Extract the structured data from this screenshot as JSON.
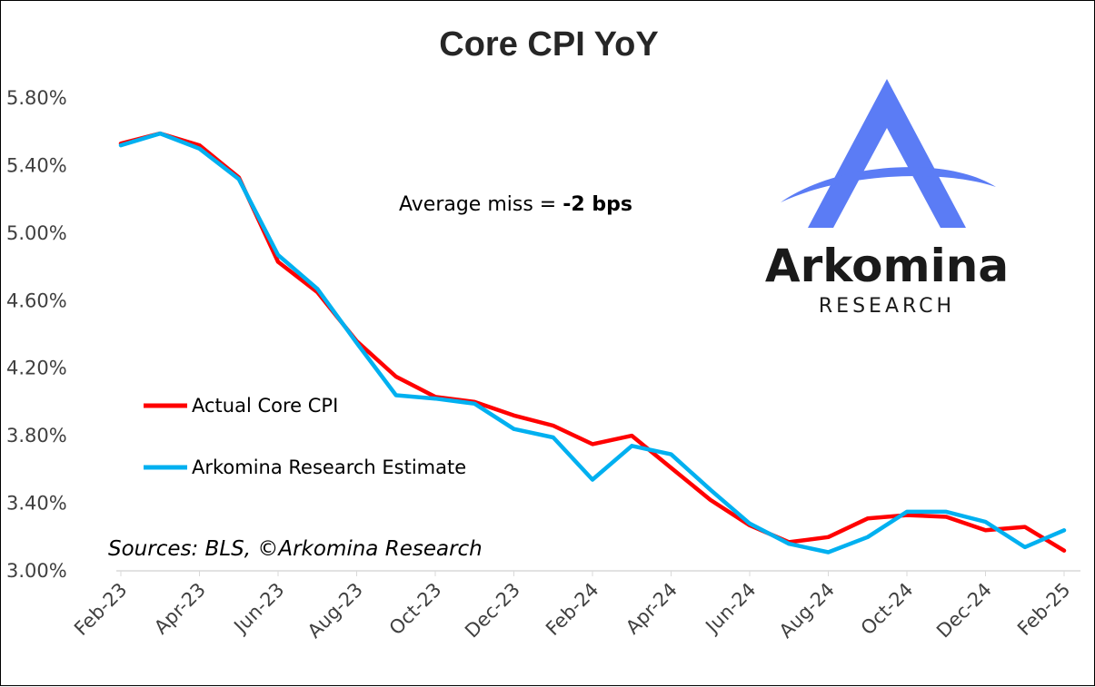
{
  "chart_data": {
    "type": "line",
    "title": "Core CPI YoY",
    "xlabel": "",
    "ylabel": "",
    "ylim": [
      3.0,
      5.8
    ],
    "yticks": [
      "5.80%",
      "5.40%",
      "5.00%",
      "4.60%",
      "4.20%",
      "3.80%",
      "3.40%",
      "3.00%"
    ],
    "x": [
      "Feb-23",
      "Mar-23",
      "Apr-23",
      "May-23",
      "Jun-23",
      "Jul-23",
      "Aug-23",
      "Sep-23",
      "Oct-23",
      "Nov-23",
      "Dec-23",
      "Jan-24",
      "Feb-24",
      "Mar-24",
      "Apr-24",
      "May-24",
      "Jun-24",
      "Jul-24",
      "Aug-24",
      "Sep-24",
      "Oct-24",
      "Nov-24",
      "Dec-24",
      "Jan-25",
      "Feb-25"
    ],
    "xtick_labels": [
      "Feb-23",
      "Apr-23",
      "Jun-23",
      "Aug-23",
      "Oct-23",
      "Dec-23",
      "Feb-24",
      "Apr-24",
      "Jun-24",
      "Aug-24",
      "Oct-24",
      "Dec-24",
      "Feb-25"
    ],
    "series": [
      {
        "name": "Actual Core CPI",
        "color": "#ff0000",
        "values": [
          5.53,
          5.59,
          5.52,
          5.33,
          4.83,
          4.65,
          4.36,
          4.15,
          4.03,
          4.0,
          3.92,
          3.86,
          3.75,
          3.8,
          3.61,
          3.42,
          3.27,
          3.17,
          3.2,
          3.31,
          3.33,
          3.32,
          3.24,
          3.26,
          3.12
        ]
      },
      {
        "name": "Arkomina Research Estimate",
        "color": "#00b0f0",
        "values": [
          5.52,
          5.59,
          5.5,
          5.32,
          4.87,
          4.67,
          4.35,
          4.04,
          4.02,
          3.99,
          3.84,
          3.79,
          3.54,
          3.74,
          3.69,
          3.48,
          3.28,
          3.16,
          3.11,
          3.2,
          3.35,
          3.35,
          3.29,
          3.14,
          3.24
        ]
      }
    ],
    "legend_position": "left",
    "grid": false
  },
  "annotation": {
    "prefix": "Average miss = ",
    "value": "-2 bps"
  },
  "source_note": "Sources: BLS, ©Arkomina Research",
  "logo": {
    "name": "Arkomina",
    "subtitle": "RESEARCH",
    "color": "#5b7cf5"
  }
}
